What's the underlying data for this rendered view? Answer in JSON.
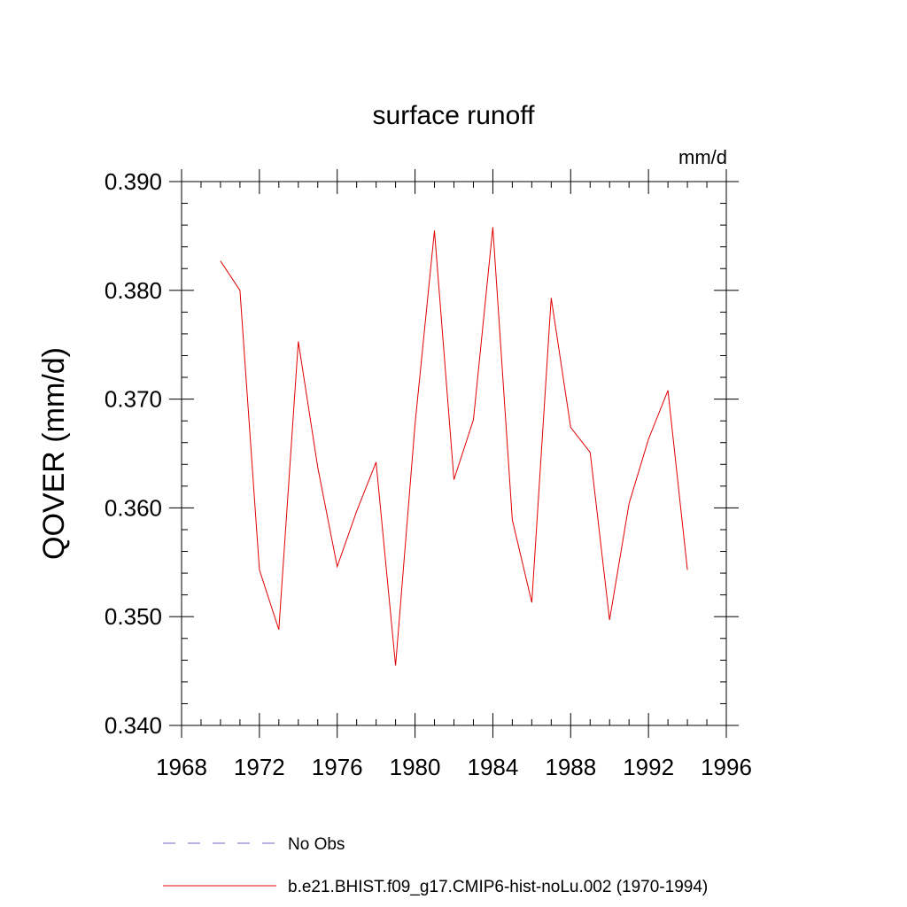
{
  "chart_data": {
    "type": "line",
    "title": "surface runoff",
    "units_label": "mm/d",
    "ylabel": "QOVER  (mm/d)",
    "xlabel": "",
    "xlim": [
      1968,
      1996
    ],
    "ylim": [
      0.34,
      0.39
    ],
    "x_ticks": [
      "1968",
      "1972",
      "1976",
      "1980",
      "1984",
      "1988",
      "1992",
      "1996"
    ],
    "y_ticks": [
      "0.340",
      "0.350",
      "0.360",
      "0.370",
      "0.380",
      "0.390"
    ],
    "grid": false,
    "legend_position": "bottom",
    "legend": [
      {
        "label": "No Obs",
        "style": "dashed",
        "color": "#6a6ac8"
      },
      {
        "label": "b.e21.BHIST.f09_g17.CMIP6-hist-noLu.002 (1970-1994)",
        "style": "solid",
        "color": "#e00000"
      }
    ],
    "series": [
      {
        "name": "b.e21.BHIST.f09_g17.CMIP6-hist-noLu.002 (1970-1994)",
        "color": "#e00000",
        "x": [
          1970,
          1971,
          1972,
          1973,
          1974,
          1975,
          1976,
          1977,
          1978,
          1979,
          1980,
          1981,
          1982,
          1983,
          1984,
          1985,
          1986,
          1987,
          1988,
          1989,
          1990,
          1991,
          1992,
          1993,
          1994
        ],
        "values": [
          0.3827,
          0.38,
          0.3543,
          0.3488,
          0.3753,
          0.3637,
          0.3546,
          0.3597,
          0.3642,
          0.3455,
          0.3677,
          0.3855,
          0.3626,
          0.3681,
          0.3858,
          0.3589,
          0.3513,
          0.3793,
          0.3674,
          0.3651,
          0.3497,
          0.3604,
          0.3663,
          0.3708,
          0.3543
        ]
      }
    ]
  }
}
